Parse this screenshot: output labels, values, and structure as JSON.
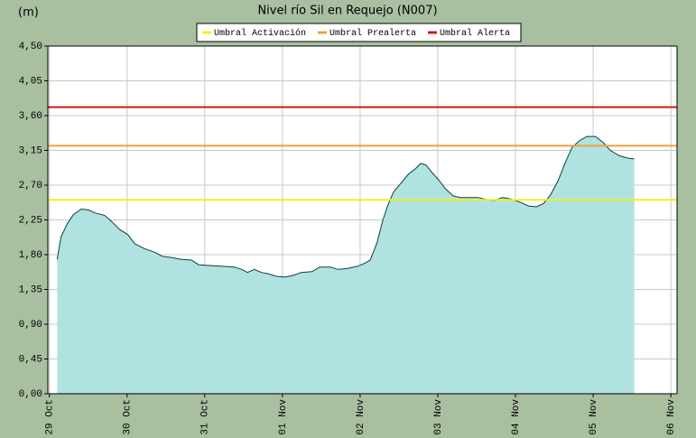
{
  "chart_data": {
    "type": "area",
    "title": "Nivel río Sil en Requejo  (N007)",
    "y_label": "(m)",
    "x": [
      0.1,
      0.15,
      0.23,
      0.31,
      0.41,
      0.5,
      0.59,
      0.71,
      0.8,
      0.9,
      1.01,
      1.1,
      1.22,
      1.36,
      1.45,
      1.59,
      1.69,
      1.83,
      1.92,
      2.06,
      2.21,
      2.38,
      2.48,
      2.55,
      2.64,
      2.73,
      2.83,
      2.92,
      3.03,
      3.13,
      3.24,
      3.38,
      3.48,
      3.62,
      3.71,
      3.83,
      3.97,
      4.06,
      4.13,
      4.22,
      4.29,
      4.36,
      4.43,
      4.52,
      4.62,
      4.71,
      4.78,
      4.85,
      4.92,
      5.01,
      5.1,
      5.2,
      5.29,
      5.52,
      5.64,
      5.73,
      5.83,
      5.94,
      6.06,
      6.17,
      6.27,
      6.36,
      6.45,
      6.55,
      6.64,
      6.73,
      6.83,
      6.92,
      7.03,
      7.13,
      7.22,
      7.34,
      7.45,
      7.53
    ],
    "series": [
      {
        "color": "#b0e2e2",
        "line_color": "#0e3e3e",
        "values": [
          1.74,
          2.03,
          2.2,
          2.32,
          2.39,
          2.38,
          2.34,
          2.31,
          2.23,
          2.13,
          2.06,
          1.94,
          1.88,
          1.83,
          1.78,
          1.76,
          1.74,
          1.73,
          1.67,
          1.66,
          1.65,
          1.64,
          1.61,
          1.57,
          1.61,
          1.57,
          1.55,
          1.52,
          1.51,
          1.53,
          1.57,
          1.58,
          1.64,
          1.64,
          1.61,
          1.62,
          1.65,
          1.69,
          1.73,
          1.96,
          2.24,
          2.45,
          2.61,
          2.72,
          2.84,
          2.91,
          2.98,
          2.96,
          2.87,
          2.77,
          2.65,
          2.56,
          2.54,
          2.54,
          2.51,
          2.5,
          2.54,
          2.52,
          2.48,
          2.43,
          2.42,
          2.46,
          2.57,
          2.76,
          2.99,
          3.19,
          3.28,
          3.33,
          3.33,
          3.25,
          3.15,
          3.08,
          3.05,
          3.04
        ]
      }
    ],
    "thresholds": [
      {
        "name": "Umbral Activación",
        "color": "#f0f020",
        "value": 2.51
      },
      {
        "name": "Umbral Prealerta",
        "color": "#f0a040",
        "value": 3.21
      },
      {
        "name": "Umbral Alerta",
        "color": "#d01818",
        "value": 3.71
      }
    ],
    "xlim": [
      -0.02,
      8.08
    ],
    "xticks": [
      {
        "value": 0,
        "label": "29 Oct"
      },
      {
        "value": 1,
        "label": "30 Oct"
      },
      {
        "value": 2,
        "label": "31 Oct"
      },
      {
        "value": 3,
        "label": "01 Nov"
      },
      {
        "value": 4,
        "label": "02 Nov"
      },
      {
        "value": 5,
        "label": "03 Nov"
      },
      {
        "value": 6,
        "label": "04 Nov"
      },
      {
        "value": 7,
        "label": "05 Nov"
      },
      {
        "value": 8,
        "label": "06 Nov"
      }
    ],
    "ylim": [
      0,
      4.5
    ],
    "yticks": [
      {
        "value": 0,
        "label": "0,00"
      },
      {
        "value": 0.45,
        "label": "0,45"
      },
      {
        "value": 0.9,
        "label": "0,90"
      },
      {
        "value": 1.35,
        "label": "1,35"
      },
      {
        "value": 1.8,
        "label": "1,80"
      },
      {
        "value": 2.25,
        "label": "2,25"
      },
      {
        "value": 2.7,
        "label": "2,70"
      },
      {
        "value": 3.15,
        "label": "3,15"
      },
      {
        "value": 3.6,
        "label": "3,60"
      },
      {
        "value": 4.05,
        "label": "4,05"
      },
      {
        "value": 4.5,
        "label": "4,50"
      }
    ],
    "grid": true
  }
}
